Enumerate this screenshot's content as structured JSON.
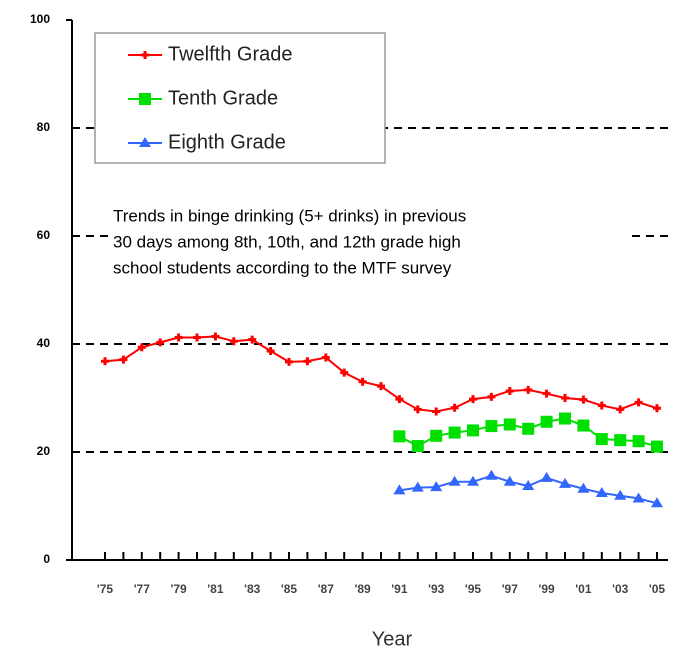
{
  "chart_data": {
    "type": "line",
    "x_label": "Year",
    "annotation": [
      "Trends in binge drinking (5+ drinks) in previous",
      "30 days among 8th, 10th, and 12th grade high",
      "school students according to the MTF survey"
    ],
    "categories": [
      "'75",
      null,
      "'77",
      null,
      "'79",
      null,
      "'81",
      null,
      "'83",
      null,
      "'85",
      null,
      "'87",
      null,
      "'89",
      null,
      "'91",
      null,
      "'93",
      null,
      "'95",
      null,
      "'97",
      null,
      "'99",
      null,
      "'01",
      null,
      "'03",
      null,
      "'05"
    ],
    "series": [
      {
        "name": "Twelfth Grade",
        "color": "#ff0000",
        "marker": "plus",
        "values": [
          36.8,
          37.1,
          39.4,
          40.3,
          41.2,
          41.2,
          41.4,
          40.5,
          40.8,
          38.7,
          36.7,
          36.8,
          37.5,
          34.7,
          33.0,
          32.2,
          29.8,
          27.9,
          27.5,
          28.2,
          29.8,
          30.2,
          31.3,
          31.5,
          30.8,
          30.0,
          29.7,
          28.6,
          27.9,
          29.2,
          28.1
        ]
      },
      {
        "name": "Tenth Grade",
        "color": "#00e000",
        "marker": "square",
        "values": [
          null,
          null,
          null,
          null,
          null,
          null,
          null,
          null,
          null,
          null,
          null,
          null,
          null,
          null,
          null,
          null,
          22.9,
          21.1,
          23.0,
          23.6,
          24.0,
          24.8,
          25.1,
          24.3,
          25.6,
          26.2,
          24.9,
          22.4,
          22.2,
          22.0,
          21.0
        ]
      },
      {
        "name": "Eighth Grade",
        "color": "#3366ff",
        "marker": "triangle",
        "values": [
          null,
          null,
          null,
          null,
          null,
          null,
          null,
          null,
          null,
          null,
          null,
          null,
          null,
          null,
          null,
          null,
          12.9,
          13.4,
          13.5,
          14.5,
          14.5,
          15.6,
          14.5,
          13.7,
          15.2,
          14.1,
          13.2,
          12.4,
          11.9,
          11.4,
          10.5
        ]
      }
    ],
    "ylim": [
      0,
      100
    ],
    "yticks": [
      0,
      20,
      40,
      60,
      80,
      100
    ],
    "grid": true,
    "legend": "top-left"
  }
}
